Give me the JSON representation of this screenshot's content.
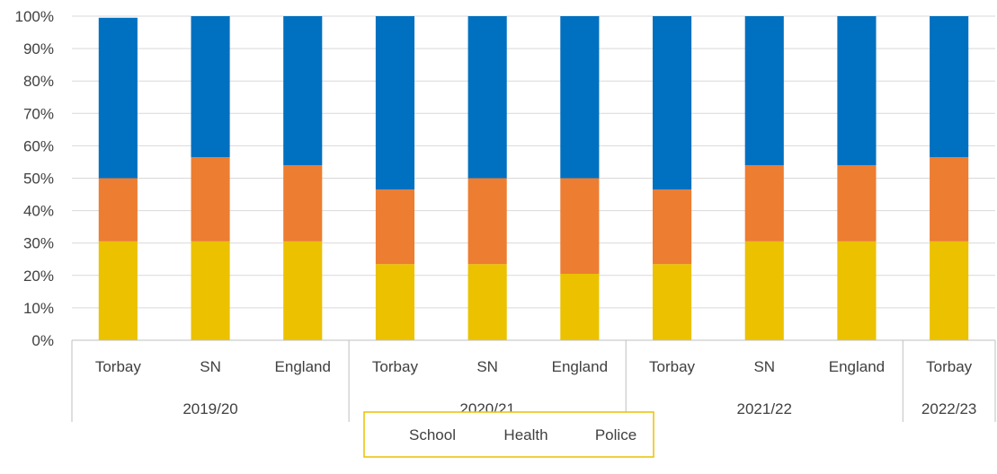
{
  "chart_data": {
    "type": "bar",
    "stacked": true,
    "percent_axis": true,
    "ylim": [
      0,
      100
    ],
    "yticks": [
      "0%",
      "10%",
      "20%",
      "30%",
      "40%",
      "50%",
      "60%",
      "70%",
      "80%",
      "90%",
      "100%"
    ],
    "groups": [
      {
        "label": "2019/20",
        "categories": [
          "Torbay",
          "SN",
          "England"
        ]
      },
      {
        "label": "2020/21",
        "categories": [
          "Torbay",
          "SN",
          "England"
        ]
      },
      {
        "label": "2021/22",
        "categories": [
          "Torbay",
          "SN",
          "England"
        ]
      },
      {
        "label": "2022/23",
        "categories": [
          "Torbay"
        ]
      }
    ],
    "series": [
      {
        "name": "School",
        "color": "#EBC100",
        "values": [
          30.5,
          30.5,
          30.5,
          23.5,
          23.5,
          20.5,
          23.5,
          30.5,
          30.5,
          30.5
        ]
      },
      {
        "name": "Health",
        "color": "#ED7D31",
        "values": [
          19.5,
          26,
          23.5,
          23,
          26.5,
          29.5,
          23,
          23.5,
          23.5,
          26
        ]
      },
      {
        "name": "Police",
        "color": "#0070C0",
        "values": [
          49.5,
          43.5,
          46,
          53.5,
          50,
          50,
          53.5,
          46,
          46,
          43.5
        ]
      }
    ],
    "legend_position": "bottom",
    "grid": true
  }
}
